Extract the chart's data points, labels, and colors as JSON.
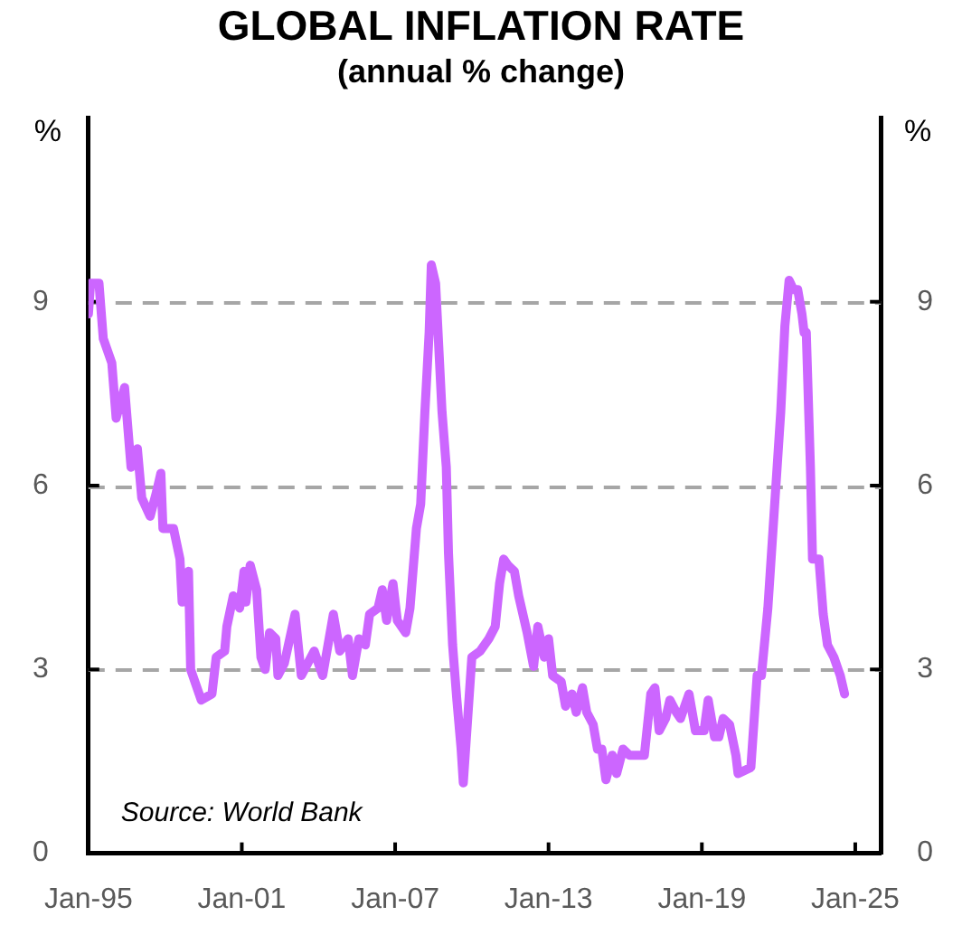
{
  "chart_data": {
    "type": "line",
    "title": "GLOBAL INFLATION RATE",
    "subtitle": "(annual % change)",
    "ylabel": "%",
    "y2label": "%",
    "annotations": [
      "Source: World Bank"
    ],
    "color": "#cc66ff",
    "grid": "y",
    "xlim": [
      "1995-01",
      "2026-01"
    ],
    "xticks": [
      {
        "value": "1995-01",
        "label": "Jan-95"
      },
      {
        "value": "2001-01",
        "label": "Jan-01"
      },
      {
        "value": "2007-01",
        "label": "Jan-07"
      },
      {
        "value": "2013-01",
        "label": "Jan-13"
      },
      {
        "value": "2019-01",
        "label": "Jan-19"
      },
      {
        "value": "2025-01",
        "label": "Jan-25"
      }
    ],
    "ylim": [
      0,
      12
    ],
    "yticks": [
      0,
      3,
      6,
      9
    ],
    "y2lim": [
      0,
      12
    ],
    "y2ticks": [
      0,
      3,
      6,
      9
    ],
    "x": [
      "1995-01",
      "1995-02",
      "1995-06",
      "1995-08",
      "1995-12",
      "1996-02",
      "1996-06",
      "1996-09",
      "1996-12",
      "1997-02",
      "1997-06",
      "1997-09",
      "1997-11",
      "1997-12",
      "1998-05",
      "1998-08",
      "1998-09",
      "1998-12",
      "1999-01",
      "1999-06",
      "1999-11",
      "2000-01",
      "2000-05",
      "2000-06",
      "2000-09",
      "2000-12",
      "2001-02",
      "2001-03",
      "2001-05",
      "2001-08",
      "2001-10",
      "2001-12",
      "2002-02",
      "2002-05",
      "2002-06",
      "2002-09",
      "2003-02",
      "2003-05",
      "2003-11",
      "2004-03",
      "2004-08",
      "2004-11",
      "2005-03",
      "2005-05",
      "2005-08",
      "2005-11",
      "2006-01",
      "2006-05",
      "2006-07",
      "2006-09",
      "2006-12",
      "2007-02",
      "2007-06",
      "2007-08",
      "2007-11",
      "2008-01",
      "2008-03",
      "2008-05",
      "2008-06",
      "2008-08",
      "2008-11",
      "2009-01",
      "2009-02",
      "2009-04",
      "2009-06",
      "2009-08",
      "2009-09",
      "2010-01",
      "2010-05",
      "2010-09",
      "2010-12",
      "2011-02",
      "2011-04",
      "2011-06",
      "2011-09",
      "2011-11",
      "2012-03",
      "2012-06",
      "2012-08",
      "2012-11",
      "2013-01",
      "2013-03",
      "2013-07",
      "2013-09",
      "2013-12",
      "2014-02",
      "2014-05",
      "2014-07",
      "2014-10",
      "2014-12",
      "2015-02",
      "2015-04",
      "2015-07",
      "2015-09",
      "2015-12",
      "2016-03",
      "2016-10",
      "2017-01",
      "2017-03",
      "2017-05",
      "2017-08",
      "2017-10",
      "2018-01",
      "2018-03",
      "2018-07",
      "2018-10",
      "2019-02",
      "2019-04",
      "2019-07",
      "2019-09",
      "2019-11",
      "2020-02",
      "2020-05",
      "2020-06",
      "2020-12",
      "2021-03",
      "2021-05",
      "2021-08",
      "2021-11",
      "2022-02",
      "2022-04",
      "2022-06",
      "2022-08",
      "2022-10",
      "2022-12",
      "2023-01",
      "2023-02",
      "2023-04",
      "2023-05",
      "2023-08",
      "2023-10",
      "2023-12",
      "2024-03",
      "2024-05",
      "2024-06",
      "2024-08"
    ],
    "values": [
      8.8,
      9.3,
      9.3,
      8.4,
      8.0,
      7.1,
      7.6,
      6.3,
      6.6,
      5.8,
      5.5,
      5.9,
      6.2,
      5.3,
      5.3,
      4.8,
      4.1,
      4.6,
      3.0,
      2.5,
      2.6,
      3.2,
      3.3,
      3.7,
      4.2,
      4.0,
      4.6,
      4.1,
      4.7,
      4.3,
      3.2,
      3.0,
      3.6,
      3.5,
      2.9,
      3.1,
      3.9,
      2.9,
      3.3,
      2.9,
      3.9,
      3.3,
      3.5,
      2.9,
      3.5,
      3.4,
      3.9,
      4.0,
      4.3,
      3.8,
      4.4,
      3.8,
      3.6,
      4.0,
      5.3,
      5.7,
      7.2,
      8.5,
      9.6,
      9.3,
      7.2,
      6.3,
      4.9,
      3.4,
      2.5,
      1.7,
      1.15,
      3.2,
      3.3,
      3.5,
      3.7,
      4.4,
      4.8,
      4.7,
      4.6,
      4.2,
      3.6,
      3.05,
      3.7,
      3.2,
      3.5,
      2.9,
      2.8,
      2.4,
      2.6,
      2.3,
      2.7,
      2.3,
      2.1,
      1.7,
      1.7,
      1.2,
      1.6,
      1.3,
      1.7,
      1.6,
      1.6,
      2.6,
      2.7,
      2.0,
      2.2,
      2.5,
      2.3,
      2.2,
      2.6,
      2.0,
      2.0,
      2.5,
      1.9,
      1.9,
      2.2,
      2.1,
      1.6,
      1.3,
      1.4,
      2.9,
      2.9,
      4.0,
      5.6,
      7.2,
      8.6,
      9.35,
      9.2,
      9.2,
      8.8,
      8.5,
      8.5,
      6.3,
      4.8,
      4.8,
      3.9,
      3.4,
      3.2,
      3.0,
      2.9,
      2.6
    ]
  }
}
